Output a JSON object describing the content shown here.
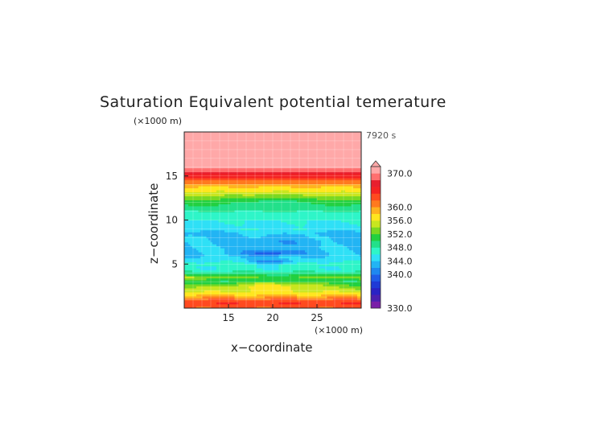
{
  "chart_data": {
    "type": "heatmap",
    "title": "Saturation Equivalent potential temerature",
    "xlabel": "x−coordinate",
    "ylabel": "z−coordinate",
    "x_unit": "(×1000 m)",
    "y_unit": "(×1000 m)",
    "time_label": "7920 s",
    "xlim": [
      10,
      30
    ],
    "ylim": [
      0,
      20
    ],
    "xticks": [
      "15",
      "20",
      "25"
    ],
    "yticks": [
      "5",
      "10",
      "15"
    ],
    "xtick_values": [
      15,
      20,
      25
    ],
    "ytick_values": [
      5,
      10,
      15
    ],
    "grid": true,
    "colorbar": {
      "min": 330,
      "max": 372,
      "extend": "max",
      "tick_labels": [
        "370.0",
        "360.0",
        "356.0",
        "352.0",
        "348.0",
        "344.0",
        "340.0",
        "330.0"
      ],
      "tick_values": [
        370,
        360,
        356,
        352,
        348,
        344,
        340,
        330
      ],
      "levels": [
        330,
        332,
        334,
        336,
        338,
        340,
        342,
        344,
        346,
        348,
        350,
        352,
        354,
        356,
        358,
        360,
        362,
        364,
        366,
        368,
        370,
        372
      ],
      "colors": [
        "#7a1fa8",
        "#4b1fb0",
        "#2a22c4",
        "#1f3ad6",
        "#1f5ce8",
        "#1f88f0",
        "#22b4f4",
        "#2fe0f6",
        "#2ef5c8",
        "#22e08a",
        "#22d040",
        "#7ad822",
        "#c8e61f",
        "#ffe61f",
        "#ffb21f",
        "#ff7a1f",
        "#ff4a1f",
        "#f52222",
        "#e81f2e",
        "#ff6f6f",
        "#ffa8a8"
      ]
    },
    "profile": [
      {
        "z": 0.0,
        "value": 362
      },
      {
        "z": 0.5,
        "value": 364
      },
      {
        "z": 1.0,
        "value": 362
      },
      {
        "z": 1.5,
        "value": 358
      },
      {
        "z": 2.0,
        "value": 355
      },
      {
        "z": 2.5,
        "value": 353
      },
      {
        "z": 3.0,
        "value": 350
      },
      {
        "z": 3.5,
        "value": 354
      },
      {
        "z": 4.0,
        "value": 349
      },
      {
        "z": 4.5,
        "value": 346
      },
      {
        "z": 5.0,
        "value": 347
      },
      {
        "z": 5.5,
        "value": 345
      },
      {
        "z": 6.0,
        "value": 344
      },
      {
        "z": 7.0,
        "value": 344
      },
      {
        "z": 8.0,
        "value": 344
      },
      {
        "z": 8.5,
        "value": 343
      },
      {
        "z": 9.0,
        "value": 345
      },
      {
        "z": 10.0,
        "value": 346
      },
      {
        "z": 11.0,
        "value": 348
      },
      {
        "z": 12.0,
        "value": 351
      },
      {
        "z": 12.5,
        "value": 353
      },
      {
        "z": 13.0,
        "value": 355
      },
      {
        "z": 13.5,
        "value": 357
      },
      {
        "z": 14.0,
        "value": 359
      },
      {
        "z": 14.5,
        "value": 362
      },
      {
        "z": 15.0,
        "value": 365
      },
      {
        "z": 15.5,
        "value": 368
      },
      {
        "z": 16.0,
        "value": 371
      },
      {
        "z": 20.0,
        "value": 372
      }
    ],
    "anomalies": [
      {
        "x": 20,
        "z": 6.3,
        "rx": 3.5,
        "rz": 0.35,
        "delta": -5
      },
      {
        "x": 20,
        "z": 5.3,
        "rx": 2.5,
        "rz": 0.3,
        "delta": -5
      },
      {
        "x": 20,
        "z": 7.5,
        "rx": 5,
        "rz": 0.5,
        "delta": -2
      },
      {
        "x": 20,
        "z": 2.6,
        "rx": 5,
        "rz": 0.6,
        "delta": 4
      },
      {
        "x": 20,
        "z": 3.4,
        "rx": 6,
        "rz": 0.4,
        "delta": -3
      },
      {
        "x": 20,
        "z": 12.2,
        "rx": 5,
        "rz": 0.6,
        "delta": -2
      },
      {
        "x": 20,
        "z": 8.7,
        "rx": 4,
        "rz": 0.4,
        "delta": 2
      }
    ]
  }
}
